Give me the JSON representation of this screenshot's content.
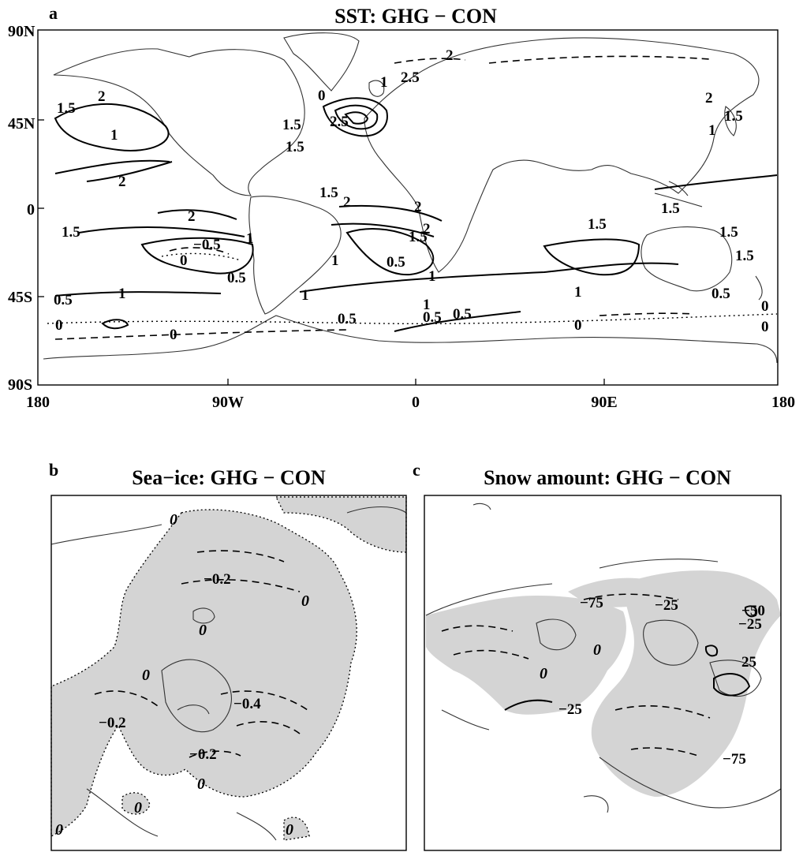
{
  "panel_a": {
    "letter": "a",
    "title": "SST: GHG − CON",
    "lat_ticks": [
      "90N",
      "45N",
      "0",
      "45S",
      "90S"
    ],
    "lon_ticks": [
      "180",
      "90W",
      "0",
      "90E",
      "180"
    ],
    "contour_labels": {
      "pos_1_5": "1.5",
      "pos_2": "2",
      "pos_1": "1",
      "pos_0_5": "0.5",
      "neg_0_5": "−0.5",
      "zero": "0",
      "pos_2_5": "2.5"
    }
  },
  "panel_b": {
    "letter": "b",
    "title": "Sea−ice: GHG − CON",
    "contour_labels": {
      "zero": "0",
      "neg_0_2": "−0.2",
      "neg_0_4": "−0.4"
    }
  },
  "panel_c": {
    "letter": "c",
    "title": "Snow amount: GHG − CON",
    "contour_labels": {
      "neg_75": "−75",
      "neg_25": "−25",
      "pos_25": "25",
      "zero": "0",
      "neg_50": "−50"
    }
  }
}
